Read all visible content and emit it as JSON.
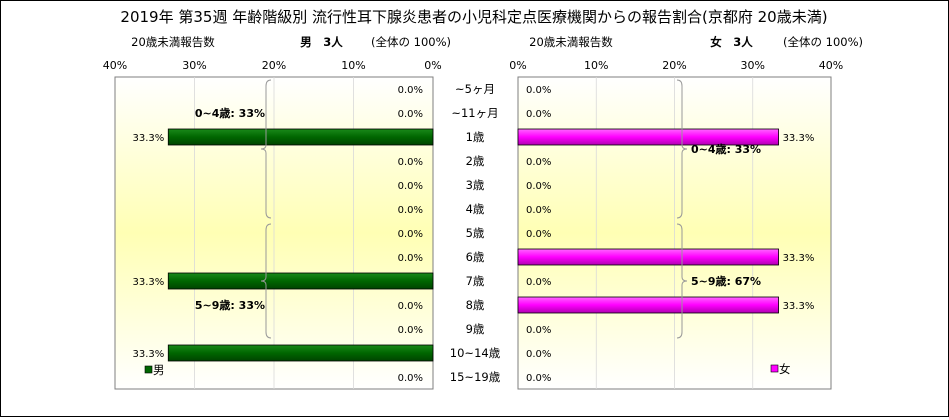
{
  "title": "2019年 第35週 年齢階級別 流行性耳下腺炎患者の小児科定点医療機関からの報告割合(京都府 20歳未満)",
  "left_header": {
    "label": "20歳未満報告数",
    "sex": "男",
    "count": "3人",
    "total": "(全体の 100%)"
  },
  "right_header": {
    "label": "20歳未満報告数",
    "sex": "女",
    "count": "3人",
    "total": "(全体の 100%)"
  },
  "left_ticks": [
    "40%",
    "30%",
    "20%",
    "10%",
    "0%"
  ],
  "right_ticks": [
    "0%",
    "10%",
    "20%",
    "30%",
    "40%"
  ],
  "legend_male": "男",
  "legend_female": "女",
  "colors": {
    "male": "#006600",
    "female": "#FF00FF"
  },
  "chart_data": {
    "type": "bar",
    "orientation": "horizontal",
    "categories": [
      "~5ヶ月",
      "~11ヶ月",
      "1歳",
      "2歳",
      "3歳",
      "4歳",
      "5歳",
      "6歳",
      "7歳",
      "8歳",
      "9歳",
      "10~14歳",
      "15~19歳"
    ],
    "xlim": [
      0,
      40
    ],
    "series": [
      {
        "name": "男",
        "values": [
          0,
          0,
          33.3,
          0,
          0,
          0,
          0,
          0,
          33.3,
          0,
          0,
          33.3,
          0
        ],
        "labels": [
          "0.0%",
          "0.0%",
          "33.3%",
          "0.0%",
          "0.0%",
          "0.0%",
          "0.0%",
          "0.0%",
          "33.3%",
          "0.0%",
          "0.0%",
          "33.3%",
          "0.0%"
        ]
      },
      {
        "name": "女",
        "values": [
          0,
          0,
          33.3,
          0,
          0,
          0,
          0,
          33.3,
          0,
          33.3,
          0,
          0,
          0
        ],
        "labels": [
          "0.0%",
          "0.0%",
          "33.3%",
          "0.0%",
          "0.0%",
          "0.0%",
          "0.0%",
          "33.3%",
          "0.0%",
          "33.3%",
          "0.0%",
          "0.0%",
          "0.0%"
        ]
      }
    ],
    "annotations": {
      "male": [
        {
          "text": "0~4歳: 33%",
          "from": 0,
          "to": 5
        },
        {
          "text": "5~9歳: 33%",
          "from": 6,
          "to": 10
        }
      ],
      "female": [
        {
          "text": "0~4歳: 33%",
          "from": 0,
          "to": 5
        },
        {
          "text": "5~9歳: 67%",
          "from": 6,
          "to": 10
        }
      ]
    }
  }
}
